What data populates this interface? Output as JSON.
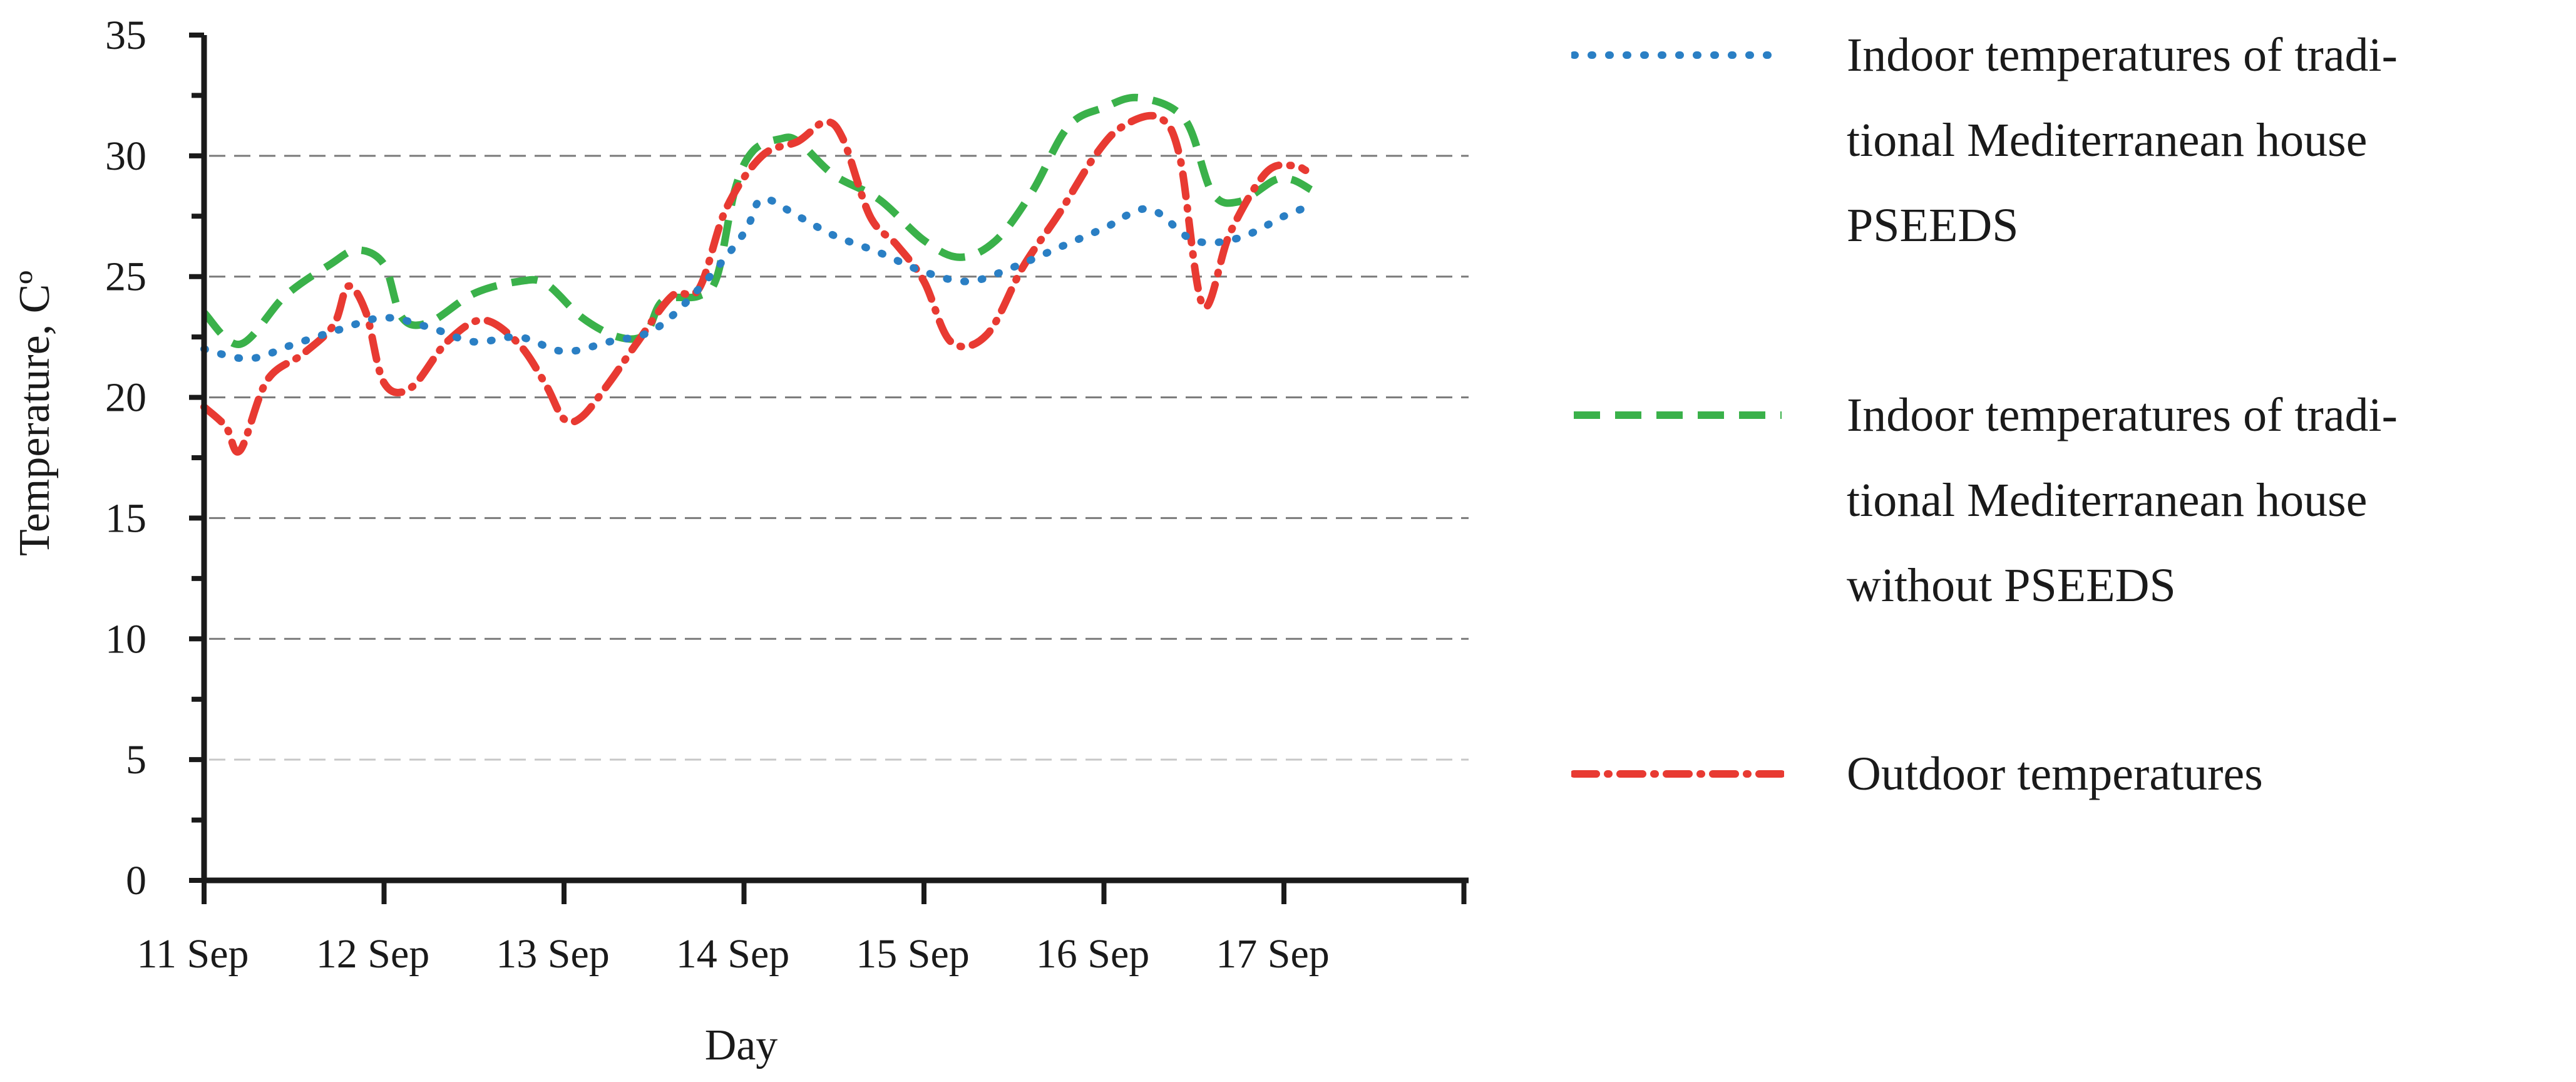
{
  "chart_data": {
    "type": "line",
    "xlabel": "Day",
    "ylabel": "Temperature, Cº",
    "ylim": [
      0,
      35
    ],
    "yticks": [
      0,
      5,
      10,
      15,
      20,
      25,
      30,
      35
    ],
    "xlim": [
      0,
      7
    ],
    "categories": [
      "11 Sep",
      "12 Sep",
      "13 Sep",
      "14 Sep",
      "15 Sep",
      "16 Sep",
      "17 Sep"
    ],
    "grid": "horizontal dashed",
    "legend_position": "right",
    "series": [
      {
        "name": "Indoor temperatures of traditional Mediterranean house PSEEDS",
        "color": "#2a7fc4",
        "dash": "dotted",
        "points": [
          [
            0.0,
            22.0
          ],
          [
            0.25,
            21.6
          ],
          [
            0.5,
            22.2
          ],
          [
            0.75,
            22.8
          ],
          [
            1.0,
            23.3
          ],
          [
            1.25,
            22.9
          ],
          [
            1.5,
            22.3
          ],
          [
            1.75,
            22.5
          ],
          [
            2.0,
            21.9
          ],
          [
            2.25,
            22.3
          ],
          [
            2.5,
            22.8
          ],
          [
            2.75,
            24.5
          ],
          [
            3.0,
            26.8
          ],
          [
            3.1,
            28.2
          ],
          [
            3.3,
            27.5
          ],
          [
            3.5,
            26.7
          ],
          [
            3.75,
            26.0
          ],
          [
            4.0,
            25.2
          ],
          [
            4.25,
            24.8
          ],
          [
            4.5,
            25.4
          ],
          [
            4.75,
            26.2
          ],
          [
            5.0,
            27.0
          ],
          [
            5.25,
            27.8
          ],
          [
            5.5,
            26.5
          ],
          [
            5.75,
            26.6
          ],
          [
            6.0,
            27.5
          ],
          [
            6.1,
            27.8
          ]
        ]
      },
      {
        "name": "Indoor temperatures of traditional Mediterranean house without PSEEDS",
        "color": "#3ab14a",
        "dash": "dashed",
        "points": [
          [
            0.0,
            23.5
          ],
          [
            0.2,
            22.2
          ],
          [
            0.45,
            24.2
          ],
          [
            0.7,
            25.5
          ],
          [
            0.85,
            26.1
          ],
          [
            1.0,
            25.5
          ],
          [
            1.1,
            23.3
          ],
          [
            1.25,
            23.1
          ],
          [
            1.5,
            24.3
          ],
          [
            1.75,
            24.8
          ],
          [
            1.9,
            24.7
          ],
          [
            2.1,
            23.3
          ],
          [
            2.3,
            22.5
          ],
          [
            2.45,
            22.6
          ],
          [
            2.55,
            24.0
          ],
          [
            2.75,
            24.2
          ],
          [
            2.85,
            25.0
          ],
          [
            2.95,
            28.6
          ],
          [
            3.05,
            30.2
          ],
          [
            3.2,
            30.7
          ],
          [
            3.3,
            30.6
          ],
          [
            3.5,
            29.2
          ],
          [
            3.75,
            28.2
          ],
          [
            4.0,
            26.5
          ],
          [
            4.2,
            25.8
          ],
          [
            4.4,
            26.5
          ],
          [
            4.6,
            28.5
          ],
          [
            4.8,
            31.2
          ],
          [
            5.0,
            32.0
          ],
          [
            5.2,
            32.4
          ],
          [
            5.45,
            31.5
          ],
          [
            5.6,
            28.5
          ],
          [
            5.75,
            28.1
          ],
          [
            5.95,
            29.0
          ],
          [
            6.05,
            29.0
          ],
          [
            6.15,
            28.6
          ]
        ]
      },
      {
        "name": "Outdoor temperatures",
        "color": "#e83a32",
        "dash": "dash-dot",
        "points": [
          [
            0.0,
            19.6
          ],
          [
            0.12,
            18.8
          ],
          [
            0.2,
            17.8
          ],
          [
            0.35,
            20.7
          ],
          [
            0.55,
            21.8
          ],
          [
            0.72,
            23.0
          ],
          [
            0.8,
            24.6
          ],
          [
            0.9,
            23.5
          ],
          [
            1.0,
            20.6
          ],
          [
            1.15,
            20.4
          ],
          [
            1.35,
            22.3
          ],
          [
            1.55,
            23.2
          ],
          [
            1.75,
            22.2
          ],
          [
            1.9,
            20.5
          ],
          [
            2.0,
            19.1
          ],
          [
            2.1,
            19.2
          ],
          [
            2.25,
            20.6
          ],
          [
            2.4,
            22.2
          ],
          [
            2.6,
            24.2
          ],
          [
            2.75,
            24.5
          ],
          [
            2.9,
            27.8
          ],
          [
            3.1,
            30.0
          ],
          [
            3.3,
            30.6
          ],
          [
            3.45,
            31.4
          ],
          [
            3.55,
            30.7
          ],
          [
            3.7,
            27.5
          ],
          [
            3.85,
            26.3
          ],
          [
            4.0,
            24.8
          ],
          [
            4.15,
            22.3
          ],
          [
            4.35,
            22.6
          ],
          [
            4.55,
            25.4
          ],
          [
            4.75,
            27.6
          ],
          [
            4.95,
            30.0
          ],
          [
            5.1,
            31.2
          ],
          [
            5.3,
            31.6
          ],
          [
            5.42,
            30.0
          ],
          [
            5.55,
            23.8
          ],
          [
            5.7,
            26.8
          ],
          [
            5.9,
            29.3
          ],
          [
            6.05,
            29.6
          ],
          [
            6.12,
            29.4
          ]
        ]
      }
    ]
  },
  "legend": {
    "entries": [
      {
        "lines": [
          "Indoor temperatures of tradi-",
          "tional Mediterranean house",
          "PSEEDS"
        ]
      },
      {
        "lines": [
          "Indoor temperatures of tradi-",
          "tional Mediterranean house",
          "without PSEEDS"
        ]
      },
      {
        "lines": [
          "Outdoor temperatures"
        ]
      }
    ]
  }
}
